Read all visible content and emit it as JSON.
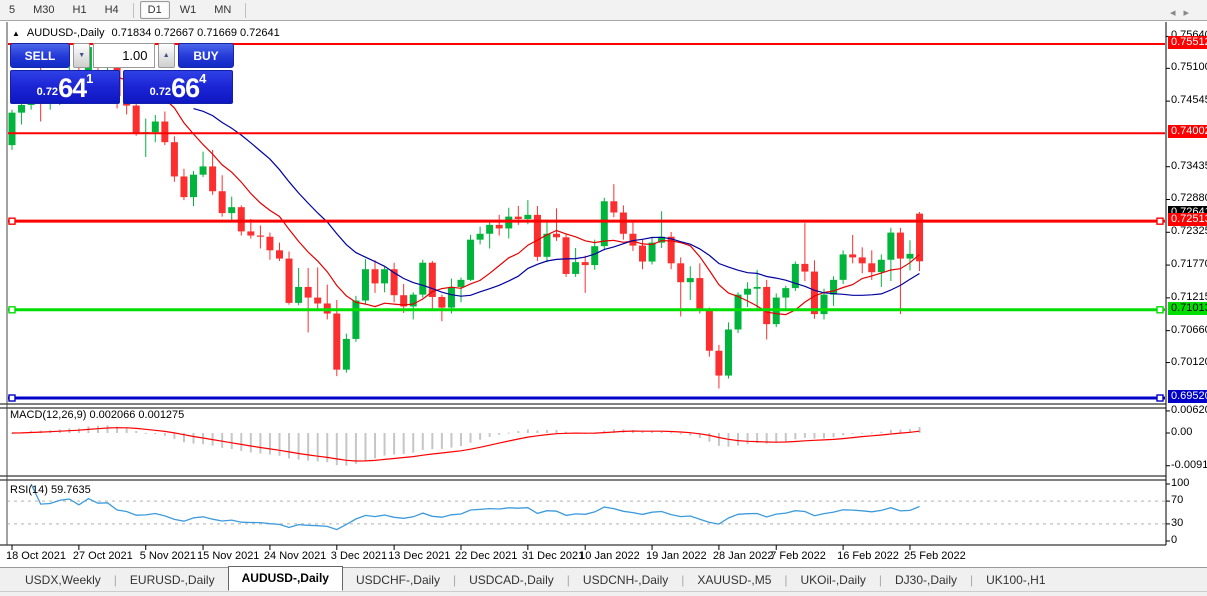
{
  "toolbar": {
    "items": [
      {
        "label": "5",
        "active": false
      },
      {
        "label": "M30",
        "active": false
      },
      {
        "label": "H1",
        "active": false
      },
      {
        "label": "H4",
        "active": false
      },
      {
        "label": "D1",
        "active": true
      },
      {
        "label": "W1",
        "active": false
      },
      {
        "label": "MN",
        "active": false
      }
    ],
    "separators_after": [
      3,
      6
    ]
  },
  "chart_header": {
    "collapse_icon": "▲",
    "instrument": "AUDUSD-,Daily",
    "ohlc": "0.71834 0.72667 0.71669 0.72641"
  },
  "trade_panel": {
    "sell_label": "SELL",
    "buy_label": "BUY",
    "volume": "1.00",
    "down_icon": "▼",
    "up_icon": "▲",
    "sell_price": {
      "prefix": "0.72",
      "big": "64",
      "sup": "1"
    },
    "buy_price": {
      "prefix": "0.72",
      "big": "66",
      "sup": "4"
    }
  },
  "price_axis": {
    "ticks": [
      "0.75640",
      "0.75100",
      "0.74545",
      "0.73435",
      "0.72880",
      "0.72325",
      "0.71770",
      "0.71215",
      "0.70660",
      "0.70120"
    ],
    "badges": [
      {
        "text": "0.75512",
        "price": 0.75512,
        "bg": "#fe0000",
        "fg": "#ffffff"
      },
      {
        "text": "0.74002",
        "price": 0.74002,
        "bg": "#fe0000",
        "fg": "#ffffff"
      },
      {
        "text": "0.72641",
        "price": 0.72641,
        "bg": "#000000",
        "fg": "#ffffff"
      },
      {
        "text": "0.72513",
        "price": 0.72513,
        "bg": "#fe0000",
        "fg": "#ffffff"
      },
      {
        "text": "0.71013",
        "price": 0.71013,
        "bg": "#00dd00",
        "fg": "#000000"
      },
      {
        "text": "0.69520",
        "price": 0.6952,
        "bg": "#0000c8",
        "fg": "#ffffff"
      }
    ]
  },
  "hlines": [
    {
      "price": 0.75512,
      "color": "#fe0000",
      "width": 2,
      "handles": false
    },
    {
      "price": 0.74002,
      "color": "#fe0000",
      "width": 2,
      "handles": false
    },
    {
      "price": 0.72513,
      "color": "#fe0000",
      "width": 3,
      "handles": true
    },
    {
      "price": 0.71013,
      "color": "#00dd00",
      "width": 3,
      "handles": true
    },
    {
      "price": 0.6952,
      "color": "#0000c8",
      "width": 3,
      "handles": true
    }
  ],
  "indicator_panels": {
    "macd": {
      "label": "MACD(12,26,9) 0.002066 0.001275",
      "fast": 12,
      "slow": 26,
      "signal": 9,
      "histogram_color": "#c6c6c6",
      "signal_color": "#ff0000",
      "scale": [
        {
          "text": "0.006201",
          "v": 0.006201
        },
        {
          "text": "0.00",
          "v": 0
        },
        {
          "text": "-0.009197",
          "v": -0.009197
        }
      ]
    },
    "rsi": {
      "label": "RSI(14) 59.7635",
      "period": 14,
      "line_color": "#3c9bdc",
      "levels": [
        70,
        30
      ],
      "scale": [
        {
          "text": "100",
          "v": 100
        },
        {
          "text": "70",
          "v": 70
        },
        {
          "text": "30",
          "v": 30
        },
        {
          "text": "0",
          "v": 0
        }
      ]
    }
  },
  "date_axis": {
    "ticks": [
      {
        "index": 0,
        "label": "18 Oct 2021"
      },
      {
        "index": 7,
        "label": "27 Oct 2021"
      },
      {
        "index": 14,
        "label": "5 Nov 2021"
      },
      {
        "index": 20,
        "label": "15 Nov 2021"
      },
      {
        "index": 27,
        "label": "24 Nov 2021"
      },
      {
        "index": 34,
        "label": "3 Dec 2021"
      },
      {
        "index": 40,
        "label": "13 Dec 2021"
      },
      {
        "index": 47,
        "label": "22 Dec 2021"
      },
      {
        "index": 54,
        "label": "31 Dec 2021"
      },
      {
        "index": 60,
        "label": "10 Jan 2022"
      },
      {
        "index": 67,
        "label": "19 Jan 2022"
      },
      {
        "index": 74,
        "label": "28 Jan 2022"
      },
      {
        "index": 80,
        "label": "7 Feb 2022"
      },
      {
        "index": 87,
        "label": "16 Feb 2022"
      },
      {
        "index": 94,
        "label": "25 Feb 2022"
      }
    ]
  },
  "tabs": {
    "items": [
      "USDX,Weekly",
      "EURUSD-,Daily",
      "AUDUSD-,Daily",
      "USDCHF-,Daily",
      "USDCAD-,Daily",
      "USDCNH-,Daily",
      "XAUUSD-,M5",
      "UKOil-,Daily",
      "DJ30-,Daily",
      "UK100-,H1"
    ],
    "active_index": 2,
    "scroll_left_icon": "◂",
    "scroll_right_icon": "▸"
  },
  "chart_data": {
    "type": "candlestick",
    "symbol": "AUDUSD-",
    "timeframe": "Daily",
    "bull_color": "#00b43c",
    "bear_color": "#fb2f2f",
    "ma_fast": {
      "period": 10,
      "color": "#e60000"
    },
    "ma_slow": {
      "period": 20,
      "color": "#0000a0"
    },
    "last_ohlc": {
      "open": 0.71834,
      "high": 0.72667,
      "low": 0.71669,
      "close": 0.72641
    },
    "candles": [
      [
        "18 Oct 2021",
        0.738,
        0.744,
        0.7372,
        0.7435
      ],
      [
        "19 Oct 2021",
        0.7435,
        0.7452,
        0.7415,
        0.7448
      ],
      [
        "20 Oct 2021",
        0.7448,
        0.7505,
        0.744,
        0.7501
      ],
      [
        "21 Oct 2021",
        0.7501,
        0.7547,
        0.742,
        0.7465
      ],
      [
        "22 Oct 2021",
        0.7465,
        0.7485,
        0.744,
        0.7468
      ],
      [
        "25 Oct 2021",
        0.7468,
        0.7506,
        0.7448,
        0.749
      ],
      [
        "26 Oct 2021",
        0.749,
        0.7535,
        0.747,
        0.75
      ],
      [
        "27 Oct 2021",
        0.75,
        0.7528,
        0.7472,
        0.7478
      ],
      [
        "28 Oct 2021",
        0.7478,
        0.7549,
        0.747,
        0.7546
      ],
      [
        "29 Oct 2021",
        0.7546,
        0.7548,
        0.7496,
        0.7518
      ],
      [
        "1 Nov 2021",
        0.7518,
        0.7537,
        0.75,
        0.7524
      ],
      [
        "2 Nov 2021",
        0.7524,
        0.7528,
        0.7442,
        0.7463
      ],
      [
        "3 Nov 2021",
        0.7463,
        0.7488,
        0.7432,
        0.7447
      ],
      [
        "4 Nov 2021",
        0.7447,
        0.7457,
        0.7396,
        0.7399
      ],
      [
        "5 Nov 2021",
        0.7399,
        0.7425,
        0.736,
        0.7402
      ],
      [
        "8 Nov 2021",
        0.7402,
        0.7431,
        0.7385,
        0.742
      ],
      [
        "9 Nov 2021",
        0.742,
        0.7437,
        0.738,
        0.7385
      ],
      [
        "10 Nov 2021",
        0.7385,
        0.7395,
        0.7318,
        0.7327
      ],
      [
        "11 Nov 2021",
        0.7327,
        0.734,
        0.7287,
        0.7292
      ],
      [
        "12 Nov 2021",
        0.7292,
        0.7336,
        0.7277,
        0.733
      ],
      [
        "15 Nov 2021",
        0.733,
        0.7369,
        0.7326,
        0.7344
      ],
      [
        "16 Nov 2021",
        0.7344,
        0.7372,
        0.7296,
        0.7302
      ],
      [
        "17 Nov 2021",
        0.7302,
        0.7329,
        0.7259,
        0.7265
      ],
      [
        "18 Nov 2021",
        0.7265,
        0.7293,
        0.725,
        0.7275
      ],
      [
        "19 Nov 2021",
        0.7275,
        0.7278,
        0.7227,
        0.7234
      ],
      [
        "22 Nov 2021",
        0.7234,
        0.7255,
        0.7222,
        0.7227
      ],
      [
        "23 Nov 2021",
        0.7227,
        0.7244,
        0.7205,
        0.7225
      ],
      [
        "24 Nov 2021",
        0.7225,
        0.7232,
        0.7186,
        0.7202
      ],
      [
        "25 Nov 2021",
        0.7202,
        0.7215,
        0.7184,
        0.7188
      ],
      [
        "26 Nov 2021",
        0.7188,
        0.72,
        0.711,
        0.7113
      ],
      [
        "29 Nov 2021",
        0.7113,
        0.7172,
        0.7109,
        0.714
      ],
      [
        "30 Nov 2021",
        0.714,
        0.7172,
        0.7063,
        0.7122
      ],
      [
        "1 Dec 2021",
        0.7122,
        0.7173,
        0.71,
        0.7112
      ],
      [
        "2 Dec 2021",
        0.7112,
        0.7144,
        0.7085,
        0.7095
      ],
      [
        "3 Dec 2021",
        0.7095,
        0.7118,
        0.6989,
        0.7
      ],
      [
        "6 Dec 2021",
        0.7,
        0.7061,
        0.6995,
        0.7052
      ],
      [
        "7 Dec 2021",
        0.7052,
        0.7125,
        0.7047,
        0.7117
      ],
      [
        "8 Dec 2021",
        0.7117,
        0.7187,
        0.711,
        0.717
      ],
      [
        "9 Dec 2021",
        0.717,
        0.7185,
        0.713,
        0.7146
      ],
      [
        "10 Dec 2021",
        0.7146,
        0.7174,
        0.7131,
        0.717
      ],
      [
        "13 Dec 2021",
        0.717,
        0.7181,
        0.7114,
        0.7126
      ],
      [
        "14 Dec 2021",
        0.7126,
        0.7145,
        0.7096,
        0.7107
      ],
      [
        "15 Dec 2021",
        0.7107,
        0.7131,
        0.7085,
        0.7127
      ],
      [
        "16 Dec 2021",
        0.7127,
        0.7186,
        0.7122,
        0.7181
      ],
      [
        "17 Dec 2021",
        0.7181,
        0.7184,
        0.7103,
        0.7123
      ],
      [
        "20 Dec 2021",
        0.7123,
        0.7127,
        0.7082,
        0.7105
      ],
      [
        "21 Dec 2021",
        0.7105,
        0.7154,
        0.7095,
        0.714
      ],
      [
        "22 Dec 2021",
        0.714,
        0.7156,
        0.7114,
        0.7152
      ],
      [
        "23 Dec 2021",
        0.7152,
        0.7228,
        0.715,
        0.722
      ],
      [
        "24 Dec 2021",
        0.722,
        0.7242,
        0.7212,
        0.723
      ],
      [
        "27 Dec 2021",
        0.723,
        0.7249,
        0.7205,
        0.7245
      ],
      [
        "28 Dec 2021",
        0.7245,
        0.7262,
        0.7227,
        0.7239
      ],
      [
        "29 Dec 2021",
        0.7239,
        0.7274,
        0.7222,
        0.7259
      ],
      [
        "30 Dec 2021",
        0.7259,
        0.7277,
        0.7245,
        0.7255
      ],
      [
        "31 Dec 2021",
        0.7255,
        0.7287,
        0.7246,
        0.7262
      ],
      [
        "3 Jan 2022",
        0.7262,
        0.7277,
        0.7184,
        0.7191
      ],
      [
        "4 Jan 2022",
        0.7191,
        0.725,
        0.7182,
        0.723
      ],
      [
        "5 Jan 2022",
        0.723,
        0.7273,
        0.7218,
        0.7224
      ],
      [
        "6 Jan 2022",
        0.7224,
        0.7229,
        0.7157,
        0.7162
      ],
      [
        "7 Jan 2022",
        0.7162,
        0.7206,
        0.7157,
        0.7182
      ],
      [
        "10 Jan 2022",
        0.7182,
        0.7193,
        0.713,
        0.7177
      ],
      [
        "11 Jan 2022",
        0.7177,
        0.722,
        0.7169,
        0.7209
      ],
      [
        "12 Jan 2022",
        0.7209,
        0.7291,
        0.7202,
        0.7285
      ],
      [
        "13 Jan 2022",
        0.7285,
        0.7314,
        0.7258,
        0.7266
      ],
      [
        "14 Jan 2022",
        0.7266,
        0.7278,
        0.722,
        0.723
      ],
      [
        "17 Jan 2022",
        0.723,
        0.7252,
        0.7201,
        0.721
      ],
      [
        "18 Jan 2022",
        0.721,
        0.7221,
        0.717,
        0.7183
      ],
      [
        "19 Jan 2022",
        0.7183,
        0.7225,
        0.7178,
        0.7215
      ],
      [
        "20 Jan 2022",
        0.7215,
        0.7268,
        0.7206,
        0.7225
      ],
      [
        "21 Jan 2022",
        0.7225,
        0.7233,
        0.717,
        0.718
      ],
      [
        "24 Jan 2022",
        0.718,
        0.719,
        0.709,
        0.7148
      ],
      [
        "25 Jan 2022",
        0.7148,
        0.7175,
        0.7118,
        0.7155
      ],
      [
        "26 Jan 2022",
        0.7155,
        0.718,
        0.7095,
        0.71
      ],
      [
        "27 Jan 2022",
        0.71,
        0.7105,
        0.7022,
        0.7032
      ],
      [
        "28 Jan 2022",
        0.7032,
        0.7042,
        0.6968,
        0.699
      ],
      [
        "31 Jan 2022",
        0.699,
        0.708,
        0.6985,
        0.7068
      ],
      [
        "1 Feb 2022",
        0.7068,
        0.7131,
        0.7062,
        0.7127
      ],
      [
        "2 Feb 2022",
        0.7127,
        0.7148,
        0.7106,
        0.7137
      ],
      [
        "3 Feb 2022",
        0.7137,
        0.7169,
        0.71,
        0.714
      ],
      [
        "4 Feb 2022",
        0.714,
        0.7152,
        0.7051,
        0.7077
      ],
      [
        "7 Feb 2022",
        0.7077,
        0.7129,
        0.7072,
        0.7122
      ],
      [
        "8 Feb 2022",
        0.7122,
        0.7142,
        0.7102,
        0.7138
      ],
      [
        "9 Feb 2022",
        0.7138,
        0.7183,
        0.7133,
        0.7179
      ],
      [
        "10 Feb 2022",
        0.7179,
        0.7248,
        0.715,
        0.7166
      ],
      [
        "11 Feb 2022",
        0.7166,
        0.7185,
        0.7086,
        0.7094
      ],
      [
        "14 Feb 2022",
        0.7094,
        0.7137,
        0.7085,
        0.7127
      ],
      [
        "15 Feb 2022",
        0.7127,
        0.7158,
        0.7108,
        0.7152
      ],
      [
        "16 Feb 2022",
        0.7152,
        0.7202,
        0.7145,
        0.7195
      ],
      [
        "17 Feb 2022",
        0.7195,
        0.7228,
        0.718,
        0.719
      ],
      [
        "18 Feb 2022",
        0.719,
        0.7207,
        0.7163,
        0.718
      ],
      [
        "21 Feb 2022",
        0.718,
        0.7202,
        0.7152,
        0.7165
      ],
      [
        "22 Feb 2022",
        0.7165,
        0.7195,
        0.714,
        0.7186
      ],
      [
        "23 Feb 2022",
        0.7186,
        0.724,
        0.715,
        0.7232
      ],
      [
        "24 Feb 2022",
        0.7232,
        0.724,
        0.7094,
        0.7188
      ],
      [
        "25 Feb 2022",
        0.7188,
        0.7219,
        0.7168,
        0.7196
      ],
      [
        "28 Feb 2022",
        0.71834,
        0.72667,
        0.71669,
        0.72641,
        "red"
      ]
    ]
  }
}
